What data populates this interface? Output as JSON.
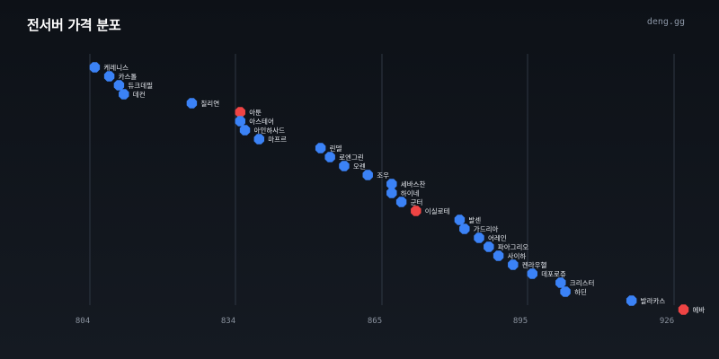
{
  "header": {
    "title": "전서버 가격 분포",
    "brand": "deng.gg"
  },
  "colors": {
    "normal": "#3b82f6",
    "highlight": "#ef4444",
    "grid": "#2f3744"
  },
  "chart_data": {
    "type": "scatter",
    "title": "전서버 가격 분포",
    "xlabel": "",
    "ylabel": "",
    "xlim": [
      804,
      926
    ],
    "xticks": [
      804,
      834,
      865,
      895,
      926
    ],
    "grid": true,
    "points": [
      {
        "label": "케레니스",
        "x": 805,
        "highlight": false
      },
      {
        "label": "카스톨",
        "x": 808,
        "highlight": false
      },
      {
        "label": "듀크데필",
        "x": 810,
        "highlight": false
      },
      {
        "label": "데컨",
        "x": 811,
        "highlight": false
      },
      {
        "label": "칠리연",
        "x": 825,
        "highlight": false
      },
      {
        "label": "아툰",
        "x": 835,
        "highlight": true
      },
      {
        "label": "아스테어",
        "x": 835,
        "highlight": false
      },
      {
        "label": "아인하사드",
        "x": 836,
        "highlight": false
      },
      {
        "label": "마프르",
        "x": 839,
        "highlight": false
      },
      {
        "label": "린델",
        "x": 852,
        "highlight": false
      },
      {
        "label": "로엔그린",
        "x": 854,
        "highlight": false
      },
      {
        "label": "오렌",
        "x": 857,
        "highlight": false
      },
      {
        "label": "조우",
        "x": 862,
        "highlight": false
      },
      {
        "label": "세바스찬",
        "x": 867,
        "highlight": false
      },
      {
        "label": "하이네",
        "x": 867,
        "highlight": false
      },
      {
        "label": "군터",
        "x": 869,
        "highlight": false
      },
      {
        "label": "이실로테",
        "x": 872,
        "highlight": true
      },
      {
        "label": "발센",
        "x": 881,
        "highlight": false
      },
      {
        "label": "가드리아",
        "x": 882,
        "highlight": false
      },
      {
        "label": "어레인",
        "x": 885,
        "highlight": false
      },
      {
        "label": "파아그리오",
        "x": 887,
        "highlight": false
      },
      {
        "label": "사이하",
        "x": 889,
        "highlight": false
      },
      {
        "label": "켄라우헬",
        "x": 892,
        "highlight": false
      },
      {
        "label": "데포로쥬",
        "x": 896,
        "highlight": false
      },
      {
        "label": "크리스터",
        "x": 902,
        "highlight": false
      },
      {
        "label": "하딘",
        "x": 903,
        "highlight": false
      },
      {
        "label": "발라카스",
        "x": 917,
        "highlight": false
      },
      {
        "label": "에바",
        "x": 928,
        "highlight": true
      }
    ]
  }
}
